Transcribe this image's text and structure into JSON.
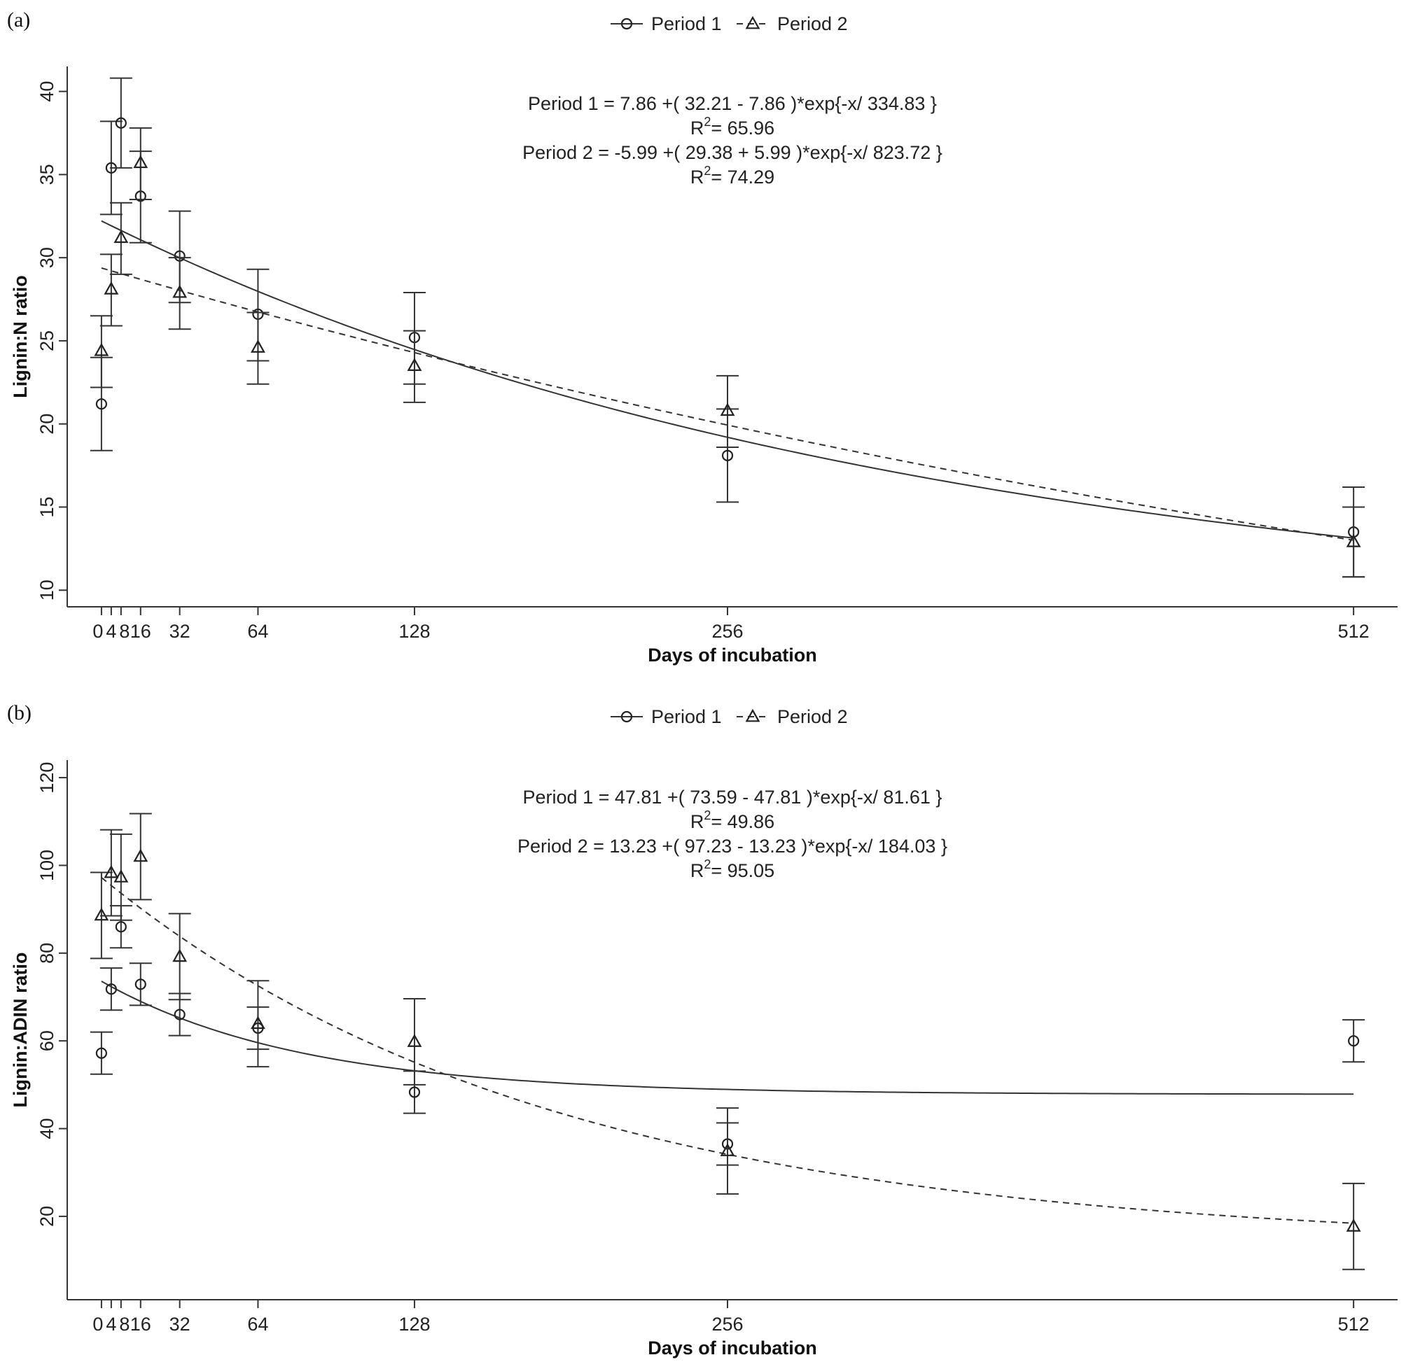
{
  "chart_data": [
    {
      "type": "scatter",
      "panel_label": "(a)",
      "legend": {
        "placement": "top-center",
        "entries": [
          "Period 1",
          "Period 2"
        ]
      },
      "xlabel": "Days of incubation",
      "ylabel": "Lignin:N ratio",
      "xlim": [
        -14,
        530
      ],
      "ylim": [
        9,
        41.5
      ],
      "x_ticks": [
        0,
        4,
        8,
        16,
        32,
        64,
        128,
        256,
        512
      ],
      "y_ticks": [
        10,
        15,
        20,
        25,
        30,
        35,
        40
      ],
      "grid": false,
      "equations": [
        {
          "text": "Period 1 = 7.86 +( 32.21 - 7.86 )*exp{-x/ 334.83 }",
          "r2_prefix": "R",
          "r2_sup": "2",
          "r2_value": "= 65.96"
        },
        {
          "text": "Period 2 = -5.99 +( 29.38 + 5.99 )*exp{-x/ 823.72 }",
          "r2_prefix": "R",
          "r2_sup": "2",
          "r2_value": "= 74.29"
        }
      ],
      "series": [
        {
          "name": "Period 1",
          "marker": "circle",
          "line": "solid",
          "fit": {
            "a": 7.86,
            "b": 32.21,
            "tau": 334.83
          },
          "points": [
            {
              "x": 0,
              "y": 21.2,
              "lo": 18.4,
              "hi": 24.0
            },
            {
              "x": 4,
              "y": 35.4,
              "lo": 32.6,
              "hi": 38.2
            },
            {
              "x": 8,
              "y": 38.1,
              "lo": 35.4,
              "hi": 40.8
            },
            {
              "x": 16,
              "y": 33.7,
              "lo": 30.9,
              "hi": 36.4
            },
            {
              "x": 32,
              "y": 30.1,
              "lo": 27.3,
              "hi": 32.8
            },
            {
              "x": 64,
              "y": 26.6,
              "lo": 23.8,
              "hi": 29.3
            },
            {
              "x": 128,
              "y": 25.2,
              "lo": 22.4,
              "hi": 27.9
            },
            {
              "x": 256,
              "y": 18.1,
              "lo": 15.3,
              "hi": 20.9
            },
            {
              "x": 512,
              "y": 13.5,
              "lo": 10.8,
              "hi": 16.2
            }
          ]
        },
        {
          "name": "Period 2",
          "marker": "triangle",
          "line": "dashed",
          "fit": {
            "a": -5.99,
            "b": 29.38,
            "tau": 823.72
          },
          "points": [
            {
              "x": 0,
              "y": 24.4,
              "lo": 22.2,
              "hi": 26.5
            },
            {
              "x": 4,
              "y": 28.1,
              "lo": 25.9,
              "hi": 30.2
            },
            {
              "x": 8,
              "y": 31.2,
              "lo": 29.0,
              "hi": 33.3
            },
            {
              "x": 16,
              "y": 35.7,
              "lo": 33.5,
              "hi": 37.8
            },
            {
              "x": 32,
              "y": 27.9,
              "lo": 25.7,
              "hi": 30.0
            },
            {
              "x": 64,
              "y": 24.6,
              "lo": 22.4,
              "hi": 26.7
            },
            {
              "x": 128,
              "y": 23.5,
              "lo": 21.3,
              "hi": 25.6
            },
            {
              "x": 256,
              "y": 20.8,
              "lo": 18.6,
              "hi": 22.9
            },
            {
              "x": 512,
              "y": 12.9,
              "lo": 10.8,
              "hi": 15.0
            }
          ]
        }
      ]
    },
    {
      "type": "scatter",
      "panel_label": "(b)",
      "legend": {
        "placement": "top-center",
        "entries": [
          "Period 1",
          "Period 2"
        ]
      },
      "xlabel": "Days of incubation",
      "ylabel": "Lignin:ADIN ratio",
      "xlim": [
        -14,
        530
      ],
      "ylim": [
        1,
        124
      ],
      "x_ticks": [
        0,
        4,
        8,
        16,
        32,
        64,
        128,
        256,
        512
      ],
      "y_ticks": [
        20,
        40,
        60,
        80,
        100,
        120
      ],
      "grid": false,
      "equations": [
        {
          "text": "Period 1 = 47.81 +( 73.59 - 47.81 )*exp{-x/ 81.61 }",
          "r2_prefix": "R",
          "r2_sup": "2",
          "r2_value": "= 49.86"
        },
        {
          "text": "Period 2 = 13.23 +( 97.23 - 13.23 )*exp{-x/ 184.03 }",
          "r2_prefix": "R",
          "r2_sup": "2",
          "r2_value": "= 95.05"
        }
      ],
      "series": [
        {
          "name": "Period 1",
          "marker": "circle",
          "line": "solid",
          "fit": {
            "a": 47.81,
            "b": 73.59,
            "tau": 81.61
          },
          "points": [
            {
              "x": 0,
              "y": 57.2,
              "lo": 52.4,
              "hi": 62.0
            },
            {
              "x": 4,
              "y": 71.8,
              "lo": 67.0,
              "hi": 76.6
            },
            {
              "x": 8,
              "y": 86.0,
              "lo": 81.2,
              "hi": 90.8
            },
            {
              "x": 16,
              "y": 72.9,
              "lo": 68.1,
              "hi": 77.7
            },
            {
              "x": 32,
              "y": 66.0,
              "lo": 61.2,
              "hi": 70.8
            },
            {
              "x": 64,
              "y": 62.9,
              "lo": 58.1,
              "hi": 67.7
            },
            {
              "x": 128,
              "y": 48.3,
              "lo": 43.5,
              "hi": 53.1
            },
            {
              "x": 256,
              "y": 36.5,
              "lo": 31.7,
              "hi": 41.3
            },
            {
              "x": 512,
              "y": 60.0,
              "lo": 55.2,
              "hi": 64.8
            }
          ]
        },
        {
          "name": "Period 2",
          "marker": "triangle",
          "line": "dashed",
          "fit": {
            "a": 13.23,
            "b": 97.23,
            "tau": 184.03
          },
          "points": [
            {
              "x": 0,
              "y": 88.6,
              "lo": 78.8,
              "hi": 98.4
            },
            {
              "x": 4,
              "y": 98.3,
              "lo": 88.5,
              "hi": 108.1
            },
            {
              "x": 8,
              "y": 97.3,
              "lo": 87.5,
              "hi": 107.1
            },
            {
              "x": 16,
              "y": 102.0,
              "lo": 92.2,
              "hi": 111.8
            },
            {
              "x": 32,
              "y": 79.2,
              "lo": 69.4,
              "hi": 89.0
            },
            {
              "x": 64,
              "y": 63.9,
              "lo": 54.1,
              "hi": 73.7
            },
            {
              "x": 128,
              "y": 59.8,
              "lo": 50.0,
              "hi": 69.6
            },
            {
              "x": 256,
              "y": 34.9,
              "lo": 25.1,
              "hi": 44.7
            },
            {
              "x": 512,
              "y": 17.7,
              "lo": 7.9,
              "hi": 27.5
            }
          ]
        }
      ]
    }
  ]
}
